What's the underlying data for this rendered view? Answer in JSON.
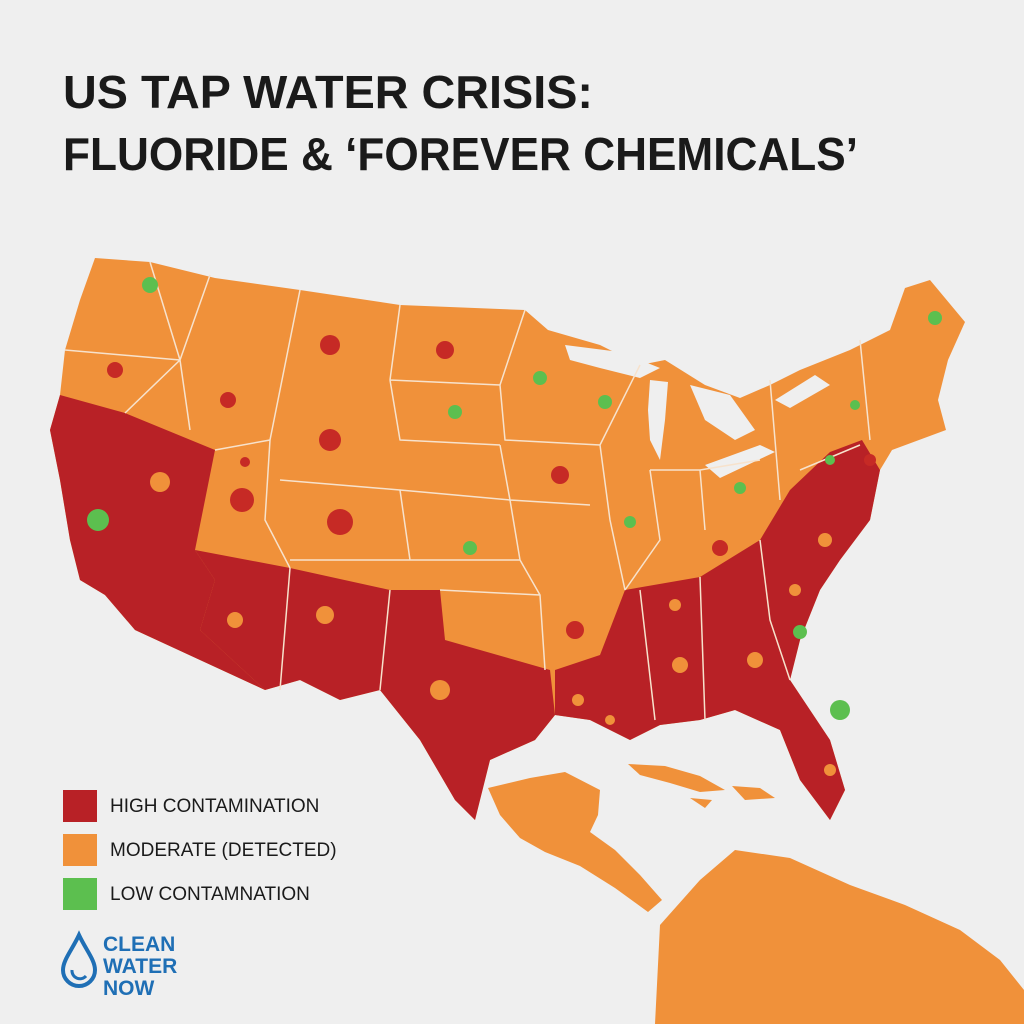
{
  "header": {
    "title_lines": [
      "US TAP WATER CRISIS:",
      "FLUORIDE & ‘FOREVER CHEMICALS’"
    ]
  },
  "legend": {
    "items": [
      {
        "label": "HIGH CONTAMINATION",
        "color": "#b82126"
      },
      {
        "label": "MODERATE (DETECTED)",
        "color": "#f0913a"
      },
      {
        "label": "LOW CONTAMNATION",
        "color": "#5cbf4f"
      }
    ]
  },
  "logo": {
    "lines": [
      "CLEAN",
      "WATER",
      "NOW"
    ]
  }
}
